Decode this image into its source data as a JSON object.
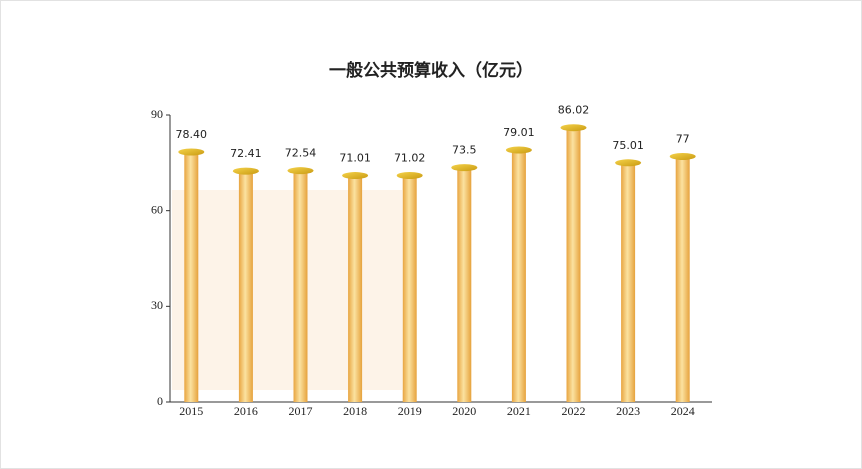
{
  "chart_data": {
    "type": "bar",
    "title": "一般公共预算收入（亿元）",
    "categories": [
      "2015",
      "2016",
      "2017",
      "2018",
      "2019",
      "2020",
      "2021",
      "2022",
      "2023",
      "2024"
    ],
    "values": [
      78.4,
      72.41,
      72.54,
      71.01,
      71.02,
      73.5,
      79.01,
      86.02,
      75.01,
      77
    ],
    "value_labels": [
      "78.40",
      "72.41",
      "72.54",
      "71.01",
      "71.02",
      "73.5",
      "79.01",
      "86.02",
      "75.01",
      "77"
    ],
    "color": "#f2c76a",
    "ylim": [
      0,
      90
    ],
    "yticks": [
      0,
      30,
      60,
      90
    ]
  }
}
